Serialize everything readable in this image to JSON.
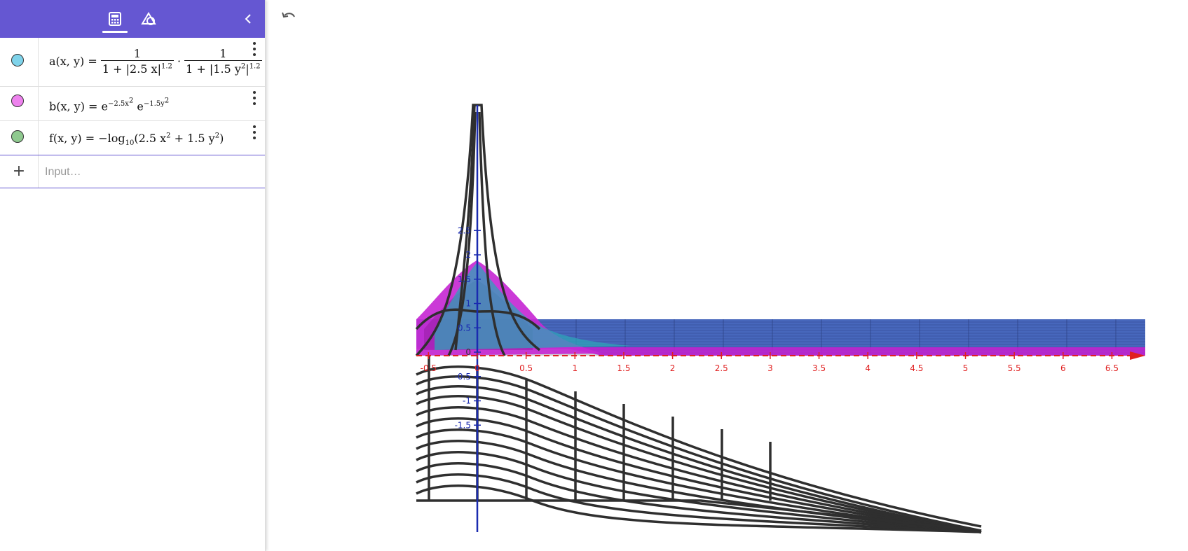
{
  "toolbar": {
    "tabs": [
      {
        "name": "algebra",
        "icon": "calculator-icon",
        "active": true
      },
      {
        "name": "tools",
        "icon": "shapes-icon",
        "active": false
      }
    ],
    "collapse_icon": "chevron-left-icon"
  },
  "accent_color": "#6557d2",
  "expressions": [
    {
      "id": "a",
      "color": "#7fd3ea",
      "lhs": "a(x, y)",
      "text": "a(x, y) = 1/(1 + |2.5 x|^1.2) · 1/(1 + |1.5 y^2|^1.2)"
    },
    {
      "id": "b",
      "color": "#ee82ee",
      "lhs": "b(x, y)",
      "text": "b(x, y) = e^(-2.5x^2) e^(-1.5y^2)"
    },
    {
      "id": "f",
      "color": "#8fc98f",
      "lhs": "f(x, y)",
      "text": "f(x, y) = -log10(2.5 x^2 + 1.5 y^2)"
    }
  ],
  "input": {
    "placeholder": "Input…",
    "add_icon": "plus-icon"
  },
  "undo_icon": "undo-icon",
  "view3d": {
    "x_axis_color": "#e02020",
    "z_axis_color": "#1a2bb0",
    "x_ticks": [
      "-0.5",
      "0",
      "0.5",
      "1",
      "1.5",
      "2",
      "2.5",
      "3",
      "3.5",
      "4",
      "4.5",
      "5",
      "5.5",
      "6",
      "6.5"
    ],
    "z_ticks": [
      "2.5",
      "2",
      "1.5",
      "1",
      "0.5",
      "0",
      "-0.5",
      "-1",
      "-1.5"
    ]
  }
}
